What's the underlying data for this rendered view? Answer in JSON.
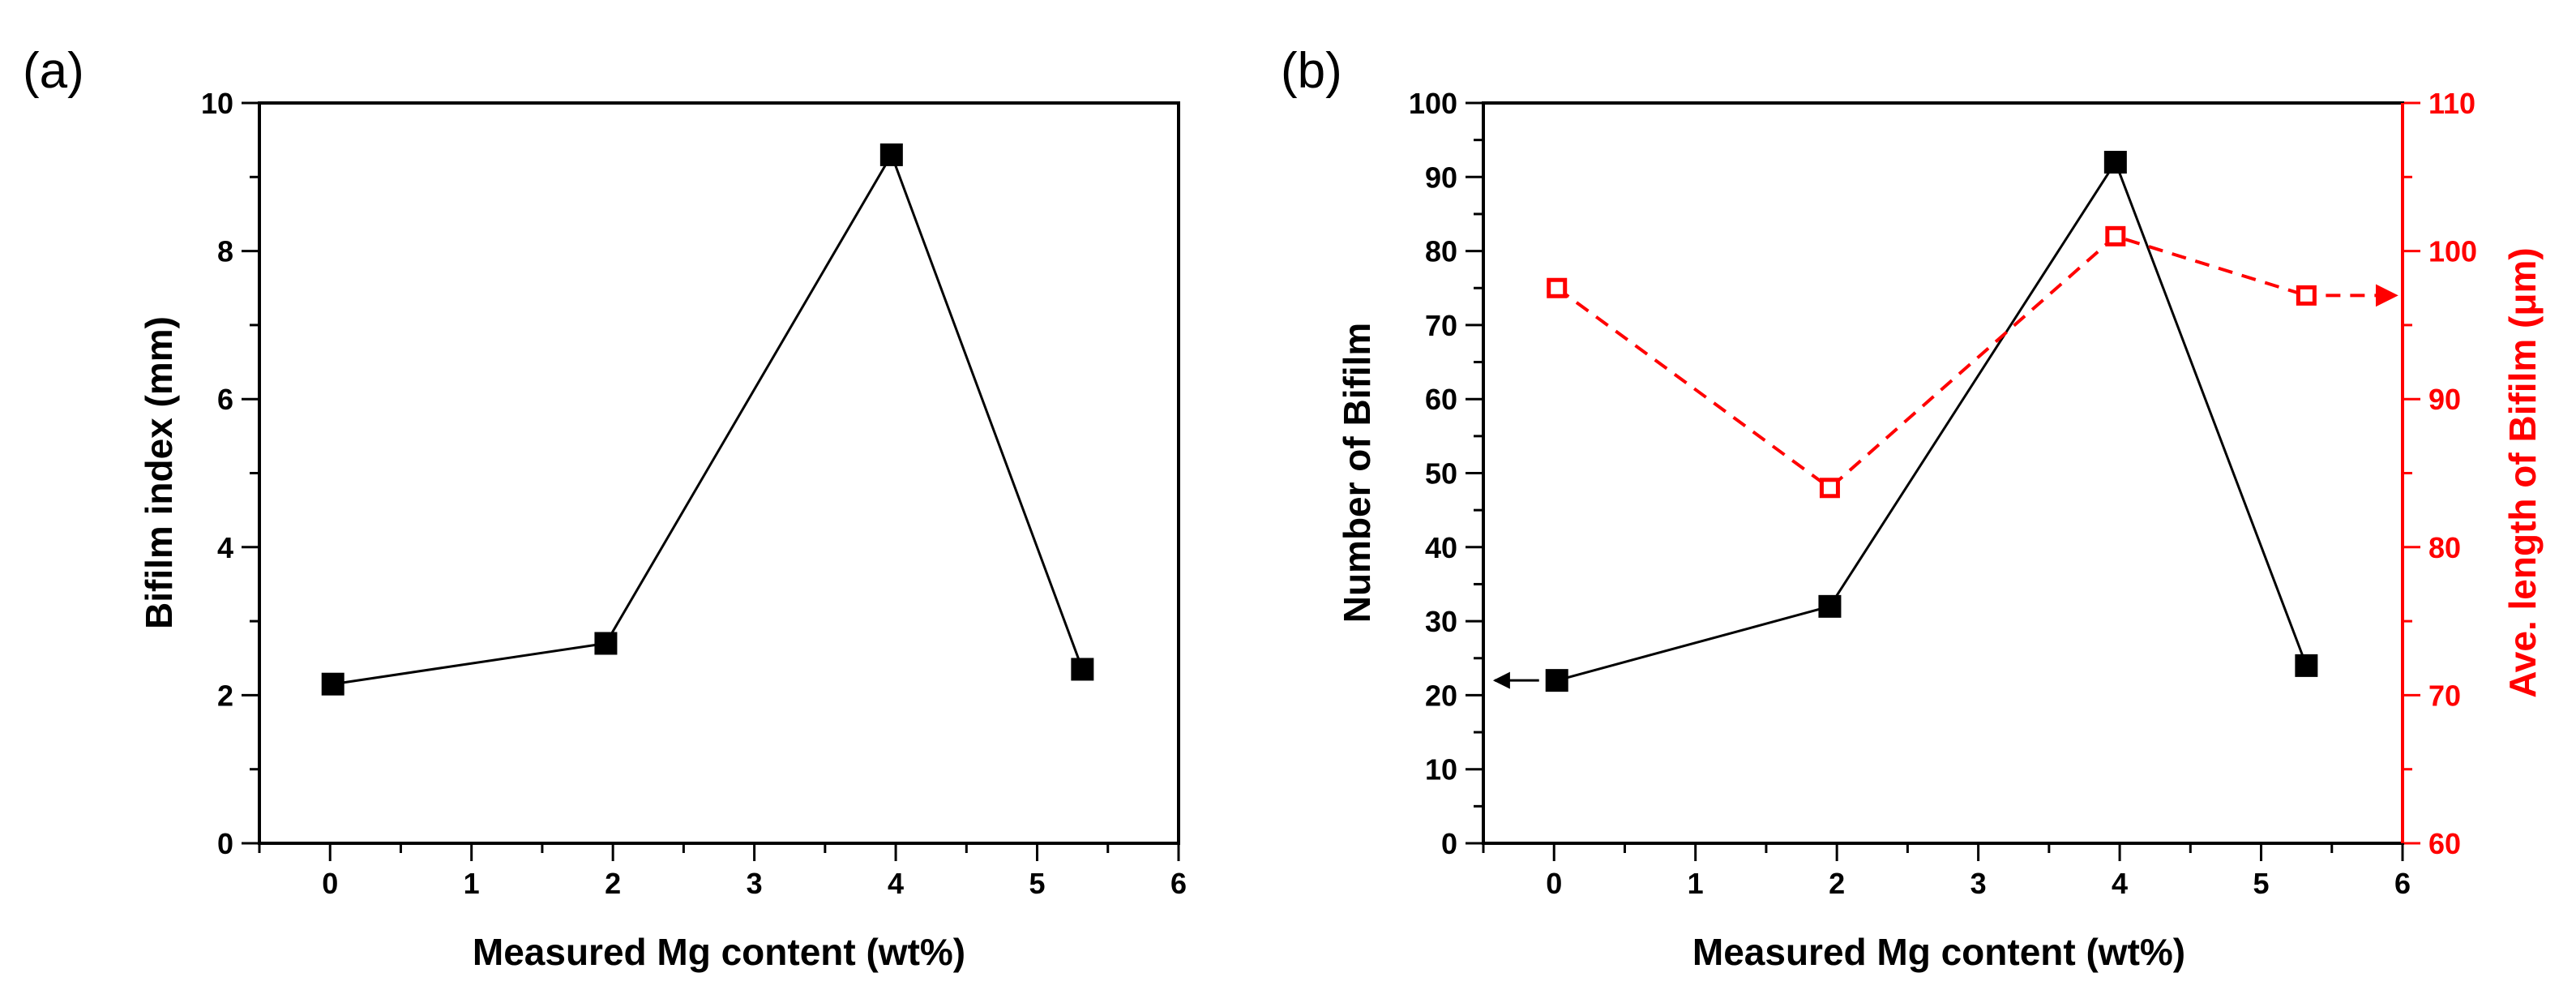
{
  "chart_data": [
    {
      "id": "a",
      "type": "line",
      "panel_label": "(a)",
      "title": "",
      "xlabel": "Measured Mg content (wt%)",
      "ylabel": "Bifilm index (mm)",
      "xlim": [
        -0.5,
        6
      ],
      "ylim": [
        0,
        10
      ],
      "xticks": [
        0,
        1,
        2,
        3,
        4,
        5,
        6
      ],
      "yticks": [
        0,
        2,
        4,
        6,
        8,
        10
      ],
      "grid": false,
      "series": [
        {
          "name": "Bifilm index",
          "color": "#000000",
          "marker": "filled-square",
          "line": "solid",
          "x": [
            0.02,
            1.95,
            3.97,
            5.32
          ],
          "y": [
            2.15,
            2.7,
            9.3,
            2.35
          ]
        }
      ]
    },
    {
      "id": "b",
      "type": "line",
      "panel_label": "(b)",
      "title": "",
      "xlabel": "Measured Mg content (wt%)",
      "ylabel": "Number of Bifilm",
      "y2label": "Ave. length of Bifilm (μm)",
      "xlim": [
        -0.5,
        6
      ],
      "ylim": [
        0,
        100
      ],
      "y2lim": [
        60,
        110
      ],
      "xticks": [
        0,
        1,
        2,
        3,
        4,
        5,
        6
      ],
      "yticks": [
        0,
        10,
        20,
        30,
        40,
        50,
        60,
        70,
        80,
        90,
        100
      ],
      "y2ticks": [
        60,
        70,
        80,
        90,
        100,
        110
      ],
      "grid": false,
      "series": [
        {
          "name": "Number of Bifilm",
          "axis": "left",
          "color": "#000000",
          "marker": "filled-square",
          "line": "solid",
          "x": [
            0.02,
            1.95,
            3.97,
            5.32
          ],
          "y": [
            22,
            32,
            92,
            24
          ]
        },
        {
          "name": "Ave. length of Bifilm",
          "axis": "right",
          "color": "#ff0000",
          "marker": "open-square",
          "line": "dashed",
          "x": [
            0.02,
            1.95,
            3.97,
            5.32
          ],
          "y": [
            97.5,
            84,
            101,
            97
          ]
        }
      ],
      "annotations": [
        {
          "type": "arrow",
          "direction": "left",
          "series": "Number of Bifilm",
          "color": "#000000"
        },
        {
          "type": "arrow",
          "direction": "right",
          "series": "Ave. length of Bifilm",
          "color": "#ff0000"
        }
      ]
    }
  ]
}
